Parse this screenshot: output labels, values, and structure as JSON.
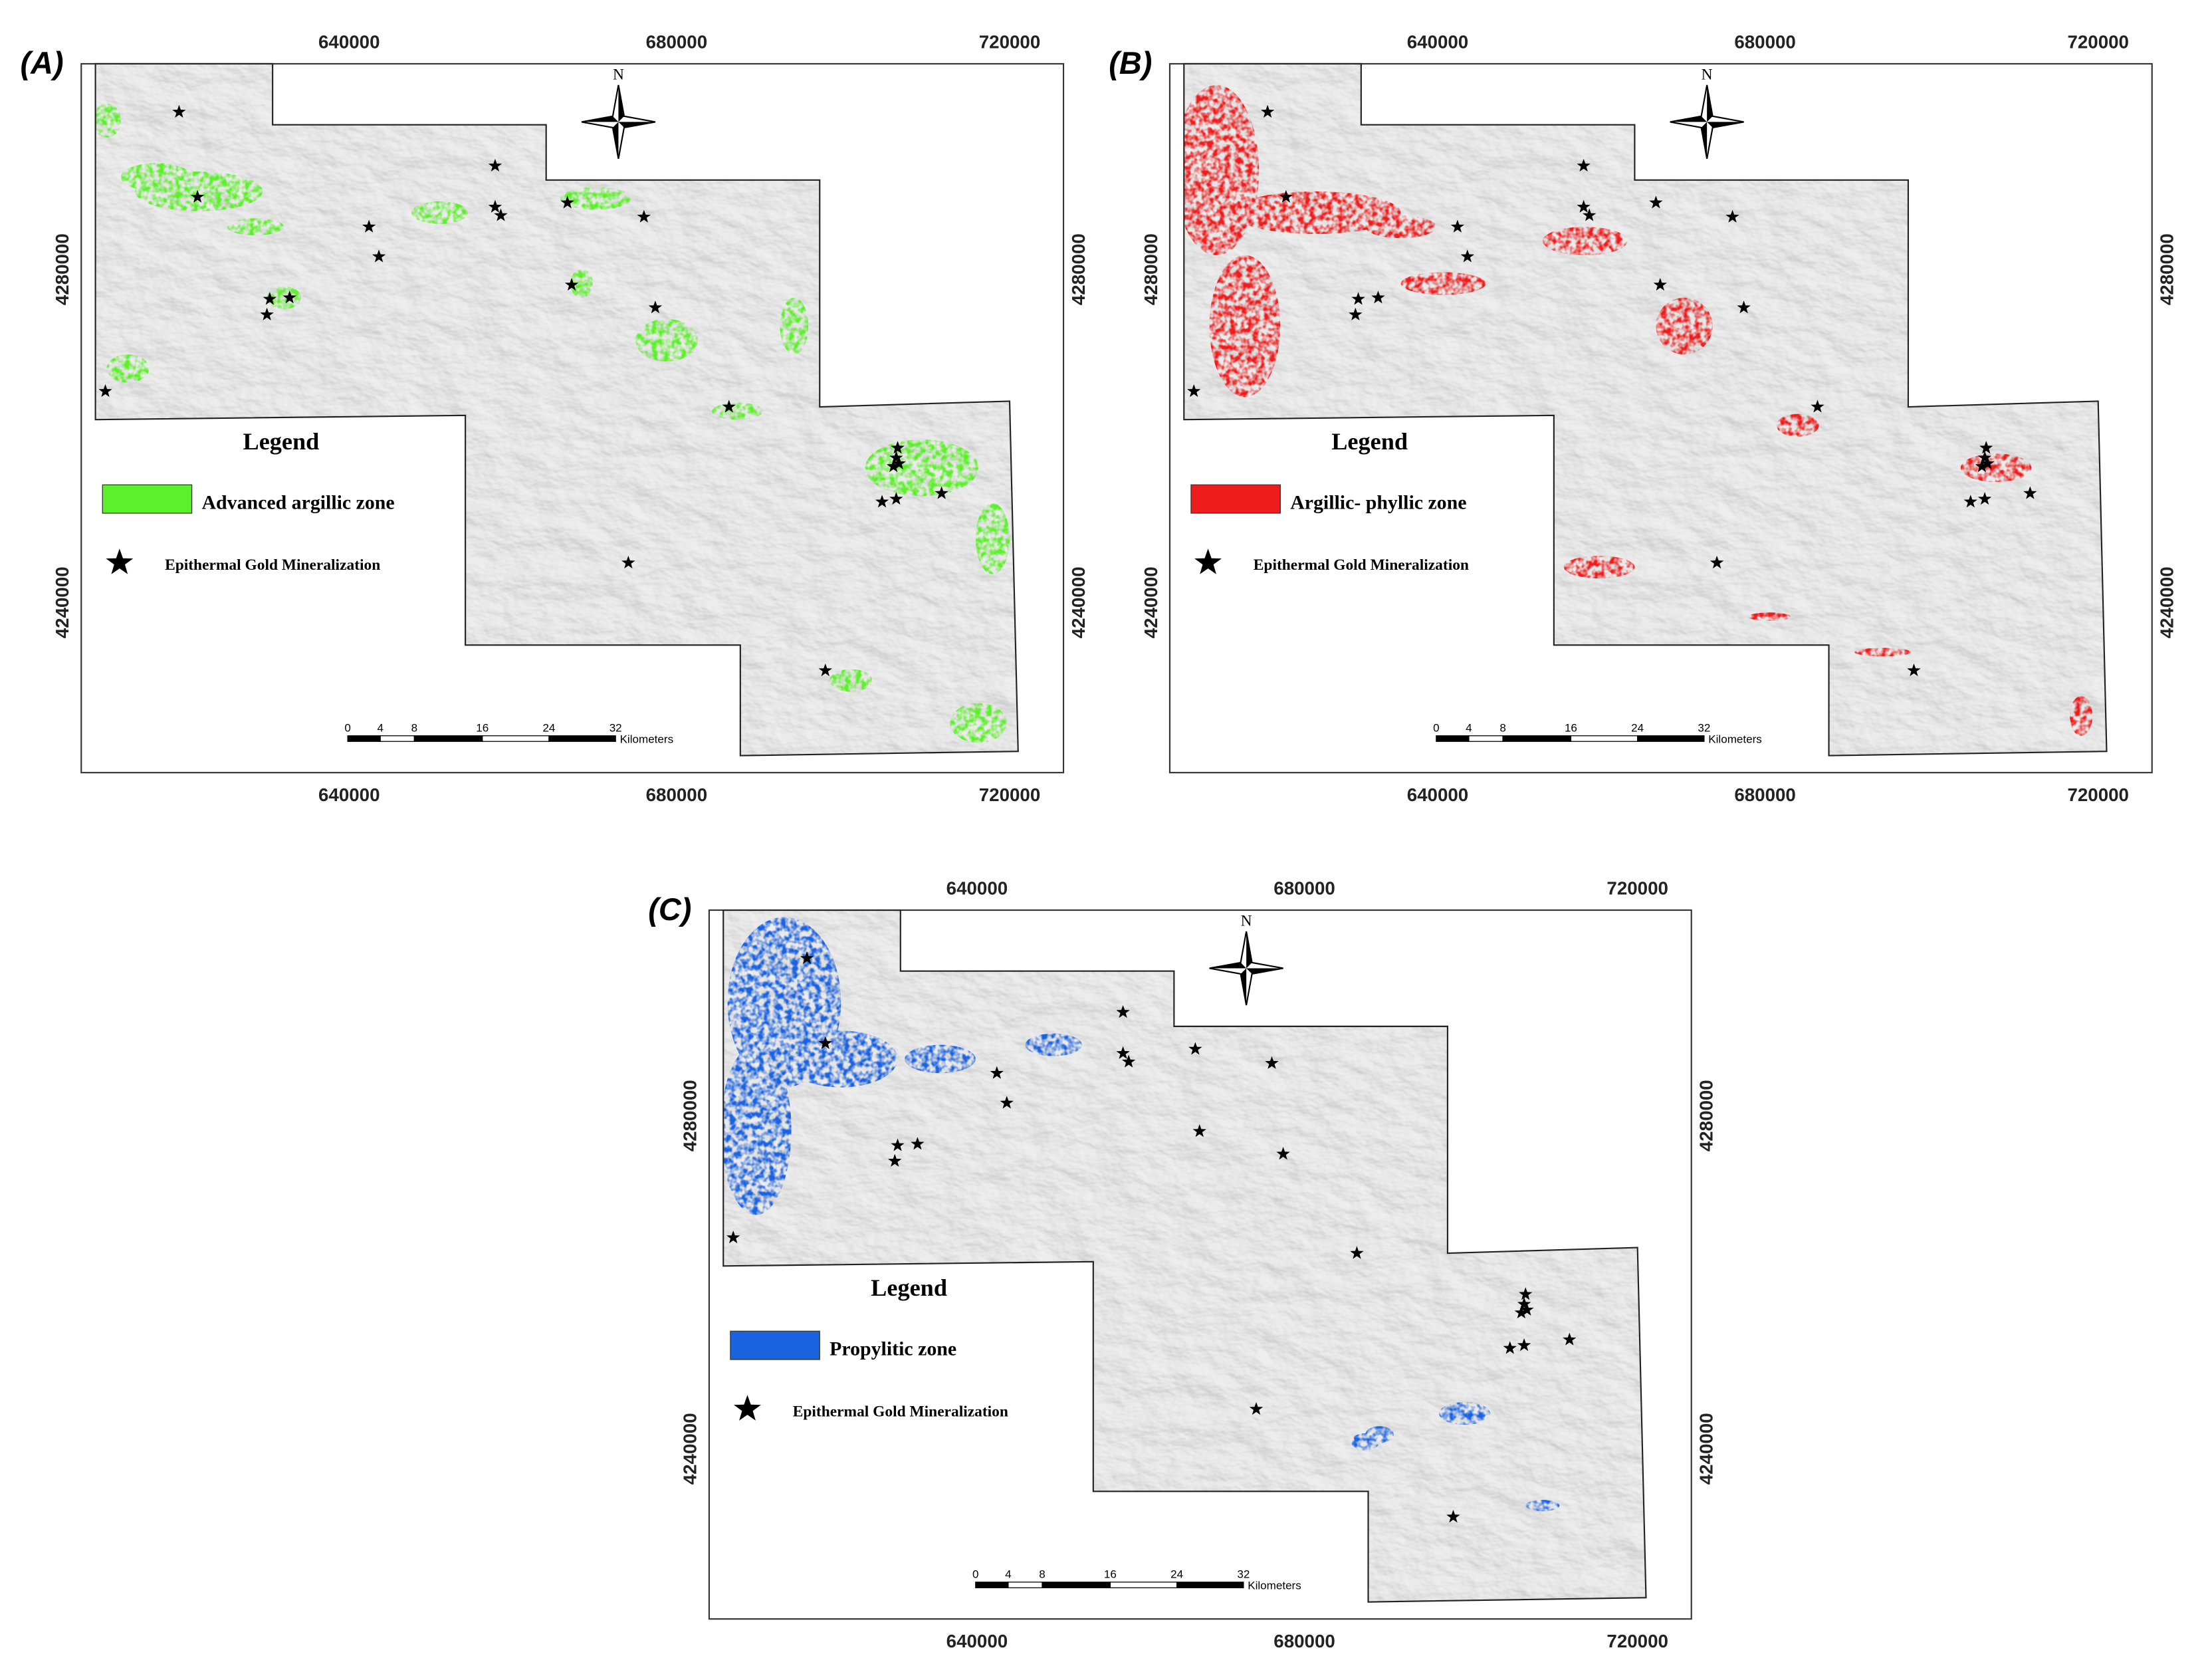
{
  "panels": [
    {
      "label": "(A)",
      "x_ticks": [
        "640000",
        "680000",
        "720000"
      ],
      "y_ticks": [
        "4280000",
        "4240000"
      ],
      "north": "N",
      "legend": {
        "title": "Legend",
        "zone": "Advanced argillic zone",
        "zone_color": "#5cf02a",
        "points": "Epithermal Gold Mineralization"
      },
      "scale_bar": {
        "ticks": [
          "0",
          "4",
          "8",
          "16",
          "24",
          "32"
        ],
        "unit": "Kilometers"
      }
    },
    {
      "label": "(B)",
      "x_ticks": [
        "640000",
        "680000",
        "720000"
      ],
      "y_ticks": [
        "4280000",
        "4240000"
      ],
      "north": "N",
      "legend": {
        "title": "Legend",
        "zone": "Argillic- phyllic zone",
        "zone_color": "#ee1c1c",
        "points": "Epithermal Gold Mineralization"
      },
      "scale_bar": {
        "ticks": [
          "0",
          "4",
          "8",
          "16",
          "24",
          "32"
        ],
        "unit": "Kilometers"
      }
    },
    {
      "label": "(C)",
      "x_ticks": [
        "640000",
        "680000",
        "720000"
      ],
      "y_ticks": [
        "4280000",
        "4240000"
      ],
      "north": "N",
      "legend": {
        "title": "Legend",
        "zone": "Propylitic zone",
        "zone_color": "#1a62e0",
        "points": "Epithermal Gold Mineralization"
      },
      "scale_bar": {
        "ticks": [
          "0",
          "4",
          "8",
          "16",
          "24",
          "32"
        ],
        "unit": "Kilometers"
      }
    }
  ]
}
